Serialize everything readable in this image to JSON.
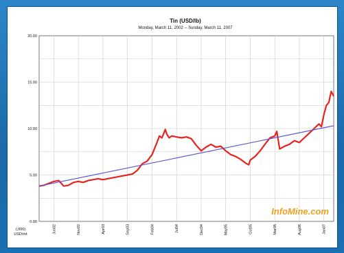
{
  "chart_data": {
    "type": "line",
    "title": "Tin (USD/lb)",
    "subtitle": "Monday, March 11, 2002 -- Sunday, March 11, 2007",
    "ylabel_line1": "(,000)",
    "ylabel_line2": "USD/mt",
    "ylim": [
      0,
      20
    ],
    "yticks": [
      "20.00",
      "15.00",
      "10.00",
      "5.00",
      "0.00"
    ],
    "ytick_values": [
      20,
      15,
      10,
      5,
      0
    ],
    "xticks": [
      "Jun02",
      "Nov02",
      "Apr03",
      "Sep03",
      "Feb04",
      "Jul04",
      "Dec04",
      "May05",
      "Oct05",
      "Mar06",
      "Aug06",
      "Jan07"
    ],
    "xtick_months": [
      3,
      8,
      13,
      18,
      23,
      28,
      33,
      38,
      43,
      48,
      53,
      58
    ],
    "xlim_months": [
      0,
      60
    ],
    "grid": true,
    "series": [
      {
        "color": "#e8221e",
        "x_months": [
          0,
          1,
          2,
          3,
          4,
          5,
          6,
          7,
          8,
          9,
          10,
          11,
          12,
          13,
          14,
          15,
          16,
          17,
          18,
          19,
          20,
          21,
          22,
          23,
          24,
          24.5,
          25,
          25.7,
          26,
          26.5,
          27,
          28,
          29,
          30,
          31,
          32,
          33,
          34,
          35,
          36,
          37,
          38,
          39,
          40,
          41,
          42,
          42.7,
          43,
          44,
          45,
          46,
          47,
          48,
          48.4,
          49,
          50,
          51,
          52,
          53,
          54,
          55,
          56,
          57,
          57.5,
          58,
          58.5,
          59,
          59.5,
          60
        ],
        "values": [
          3.8,
          3.9,
          4.1,
          4.3,
          4.4,
          3.8,
          3.9,
          4.2,
          4.3,
          4.2,
          4.4,
          4.5,
          4.6,
          4.5,
          4.6,
          4.7,
          4.8,
          4.9,
          5.0,
          5.1,
          5.5,
          6.2,
          6.5,
          7.2,
          8.5,
          9.2,
          9.0,
          9.9,
          9.4,
          9.0,
          9.2,
          9.1,
          9.0,
          9.1,
          8.9,
          8.2,
          7.6,
          8.0,
          8.3,
          8.0,
          8.1,
          7.6,
          7.2,
          7.0,
          6.7,
          6.3,
          6.1,
          6.6,
          7.0,
          7.6,
          8.3,
          9.0,
          9.2,
          9.7,
          7.8,
          8.1,
          8.3,
          8.7,
          8.5,
          9.0,
          9.5,
          10.0,
          10.5,
          10.2,
          11.5,
          12.5,
          12.8,
          14.0,
          13.5
        ]
      },
      {
        "color": "#5a5ad0",
        "x_months": [
          0,
          60
        ],
        "values": [
          3.8,
          10.3
        ]
      }
    ],
    "watermark": "InfoMine.com"
  }
}
